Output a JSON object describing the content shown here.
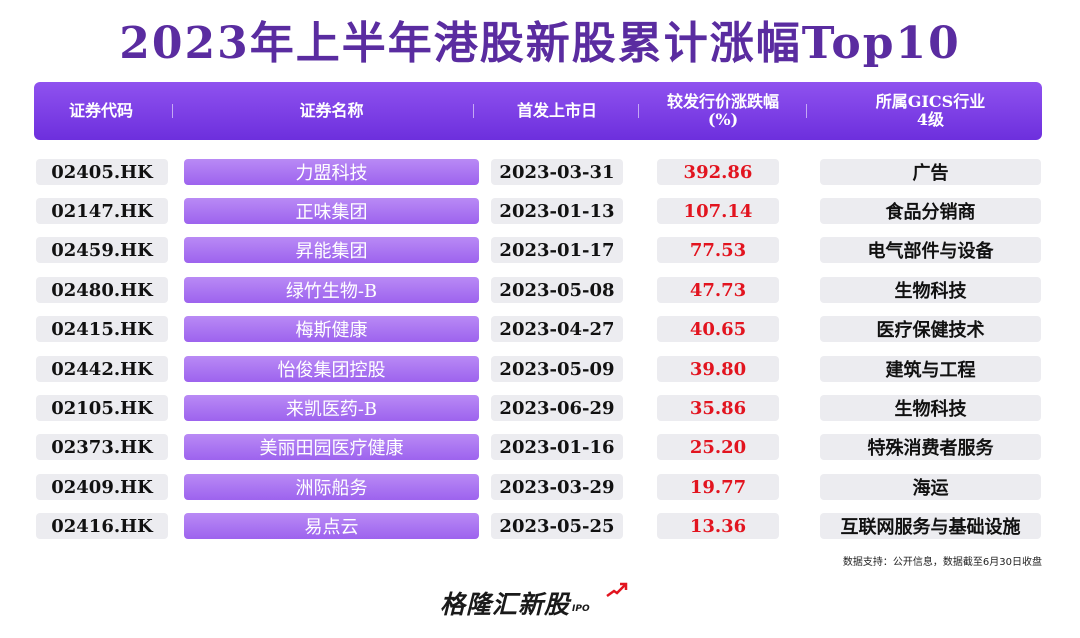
{
  "title": "2023年上半年港股新股累计涨幅Top10",
  "columns": {
    "code": "证券代码",
    "name": "证券名称",
    "date": "首发上市日",
    "gain_line1": "较发行价涨跌幅",
    "gain_line2": "(%)",
    "industry_line1": "所属GICS行业",
    "industry_line2": "4级"
  },
  "rows": [
    {
      "code": "02405.HK",
      "name": "力盟科技",
      "date": "2023-03-31",
      "gain": "392.86",
      "industry": "广告"
    },
    {
      "code": "02147.HK",
      "name": "正味集团",
      "date": "2023-01-13",
      "gain": "107.14",
      "industry": "食品分销商"
    },
    {
      "code": "02459.HK",
      "name": "昇能集团",
      "date": "2023-01-17",
      "gain": "77.53",
      "industry": "电气部件与设备"
    },
    {
      "code": "02480.HK",
      "name": "绿竹生物-B",
      "date": "2023-05-08",
      "gain": "47.73",
      "industry": "生物科技"
    },
    {
      "code": "02415.HK",
      "name": "梅斯健康",
      "date": "2023-04-27",
      "gain": "40.65",
      "industry": "医疗保健技术"
    },
    {
      "code": "02442.HK",
      "name": "怡俊集团控股",
      "date": "2023-05-09",
      "gain": "39.80",
      "industry": "建筑与工程"
    },
    {
      "code": "02105.HK",
      "name": "来凯医药-B",
      "date": "2023-06-29",
      "gain": "35.86",
      "industry": "生物科技"
    },
    {
      "code": "02373.HK",
      "name": "美丽田园医疗健康",
      "date": "2023-01-16",
      "gain": "25.20",
      "industry": "特殊消费者服务"
    },
    {
      "code": "02409.HK",
      "name": "洲际船务",
      "date": "2023-03-29",
      "gain": "19.77",
      "industry": "海运"
    },
    {
      "code": "02416.HK",
      "name": "易点云",
      "date": "2023-05-25",
      "gain": "13.36",
      "industry": "互联网服务与基础设施"
    }
  ],
  "note": "数据支持：公开信息，数据截至6月30日收盘",
  "logo": {
    "text": "格隆汇新股",
    "suffix": "IPO",
    "icon": "upward-arrow-icon"
  },
  "colors": {
    "title": "#5a2ca0",
    "header": "#7b3ae6",
    "name_cell": "#a66ff0",
    "gain": "#e2141f",
    "cell": "#ececf0"
  }
}
